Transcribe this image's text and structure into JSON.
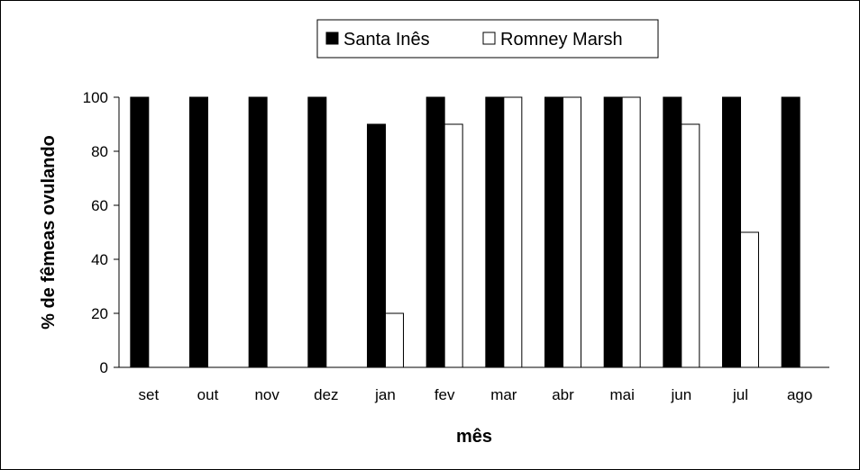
{
  "chart_data": {
    "type": "bar",
    "title": "",
    "xlabel": "mês",
    "ylabel": "% de fêmeas ovulando",
    "ylim": [
      0,
      100
    ],
    "yticks": [
      0,
      20,
      40,
      60,
      80,
      100
    ],
    "grid": false,
    "legend_position": "top",
    "categories": [
      "set",
      "out",
      "nov",
      "dez",
      "jan",
      "fev",
      "mar",
      "abr",
      "mai",
      "jun",
      "jul",
      "ago"
    ],
    "series": [
      {
        "name": "Santa Inês",
        "color": "#000000",
        "values": [
          100,
          100,
          100,
          100,
          90,
          100,
          100,
          100,
          100,
          100,
          100,
          100
        ]
      },
      {
        "name": "Romney Marsh",
        "color": "#ffffff",
        "values": [
          0,
          0,
          0,
          0,
          20,
          90,
          100,
          100,
          100,
          90,
          50,
          0
        ]
      }
    ]
  }
}
